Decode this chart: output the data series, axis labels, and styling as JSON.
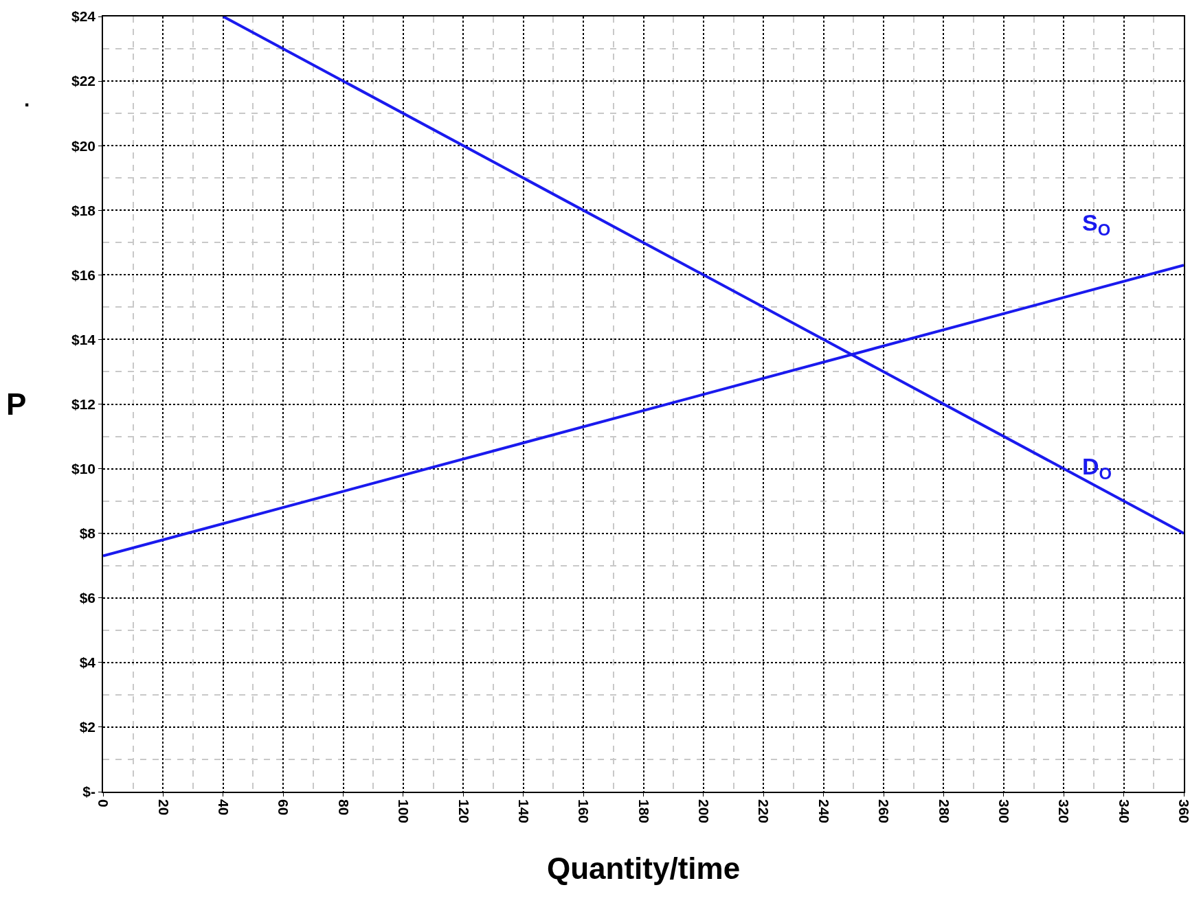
{
  "chart_data": {
    "type": "line",
    "xlabel": "Quantity/time",
    "ylabel": "P",
    "xlim": [
      0,
      360
    ],
    "xticks": [
      0,
      20,
      40,
      60,
      80,
      100,
      120,
      140,
      160,
      180,
      200,
      220,
      240,
      260,
      280,
      300,
      320,
      340,
      360
    ],
    "ylim": [
      0,
      24
    ],
    "yticks": [
      {
        "value": 0,
        "label": "$-"
      },
      {
        "value": 2,
        "label": "$2"
      },
      {
        "value": 4,
        "label": "$4"
      },
      {
        "value": 6,
        "label": "$6"
      },
      {
        "value": 8,
        "label": "$8"
      },
      {
        "value": 10,
        "label": "$10"
      },
      {
        "value": 12,
        "label": "$12"
      },
      {
        "value": 14,
        "label": "$14"
      },
      {
        "value": 16,
        "label": "$16"
      },
      {
        "value": 18,
        "label": "$18"
      },
      {
        "value": 20,
        "label": "$20"
      },
      {
        "value": 22,
        "label": "$22"
      },
      {
        "value": 24,
        "label": "$24"
      }
    ],
    "series": [
      {
        "name": "S$_{O}$",
        "color": "#1a1aee",
        "x": [
          0,
          360
        ],
        "values": [
          7.3,
          16.3
        ]
      },
      {
        "name": "D$_{O}$",
        "color": "#1a1aee",
        "x": [
          40,
          360
        ],
        "values": [
          24,
          8
        ]
      }
    ],
    "annotations": [
      "."
    ],
    "grid": true,
    "legend": false,
    "marker": "none",
    "line_style": "solid"
  }
}
